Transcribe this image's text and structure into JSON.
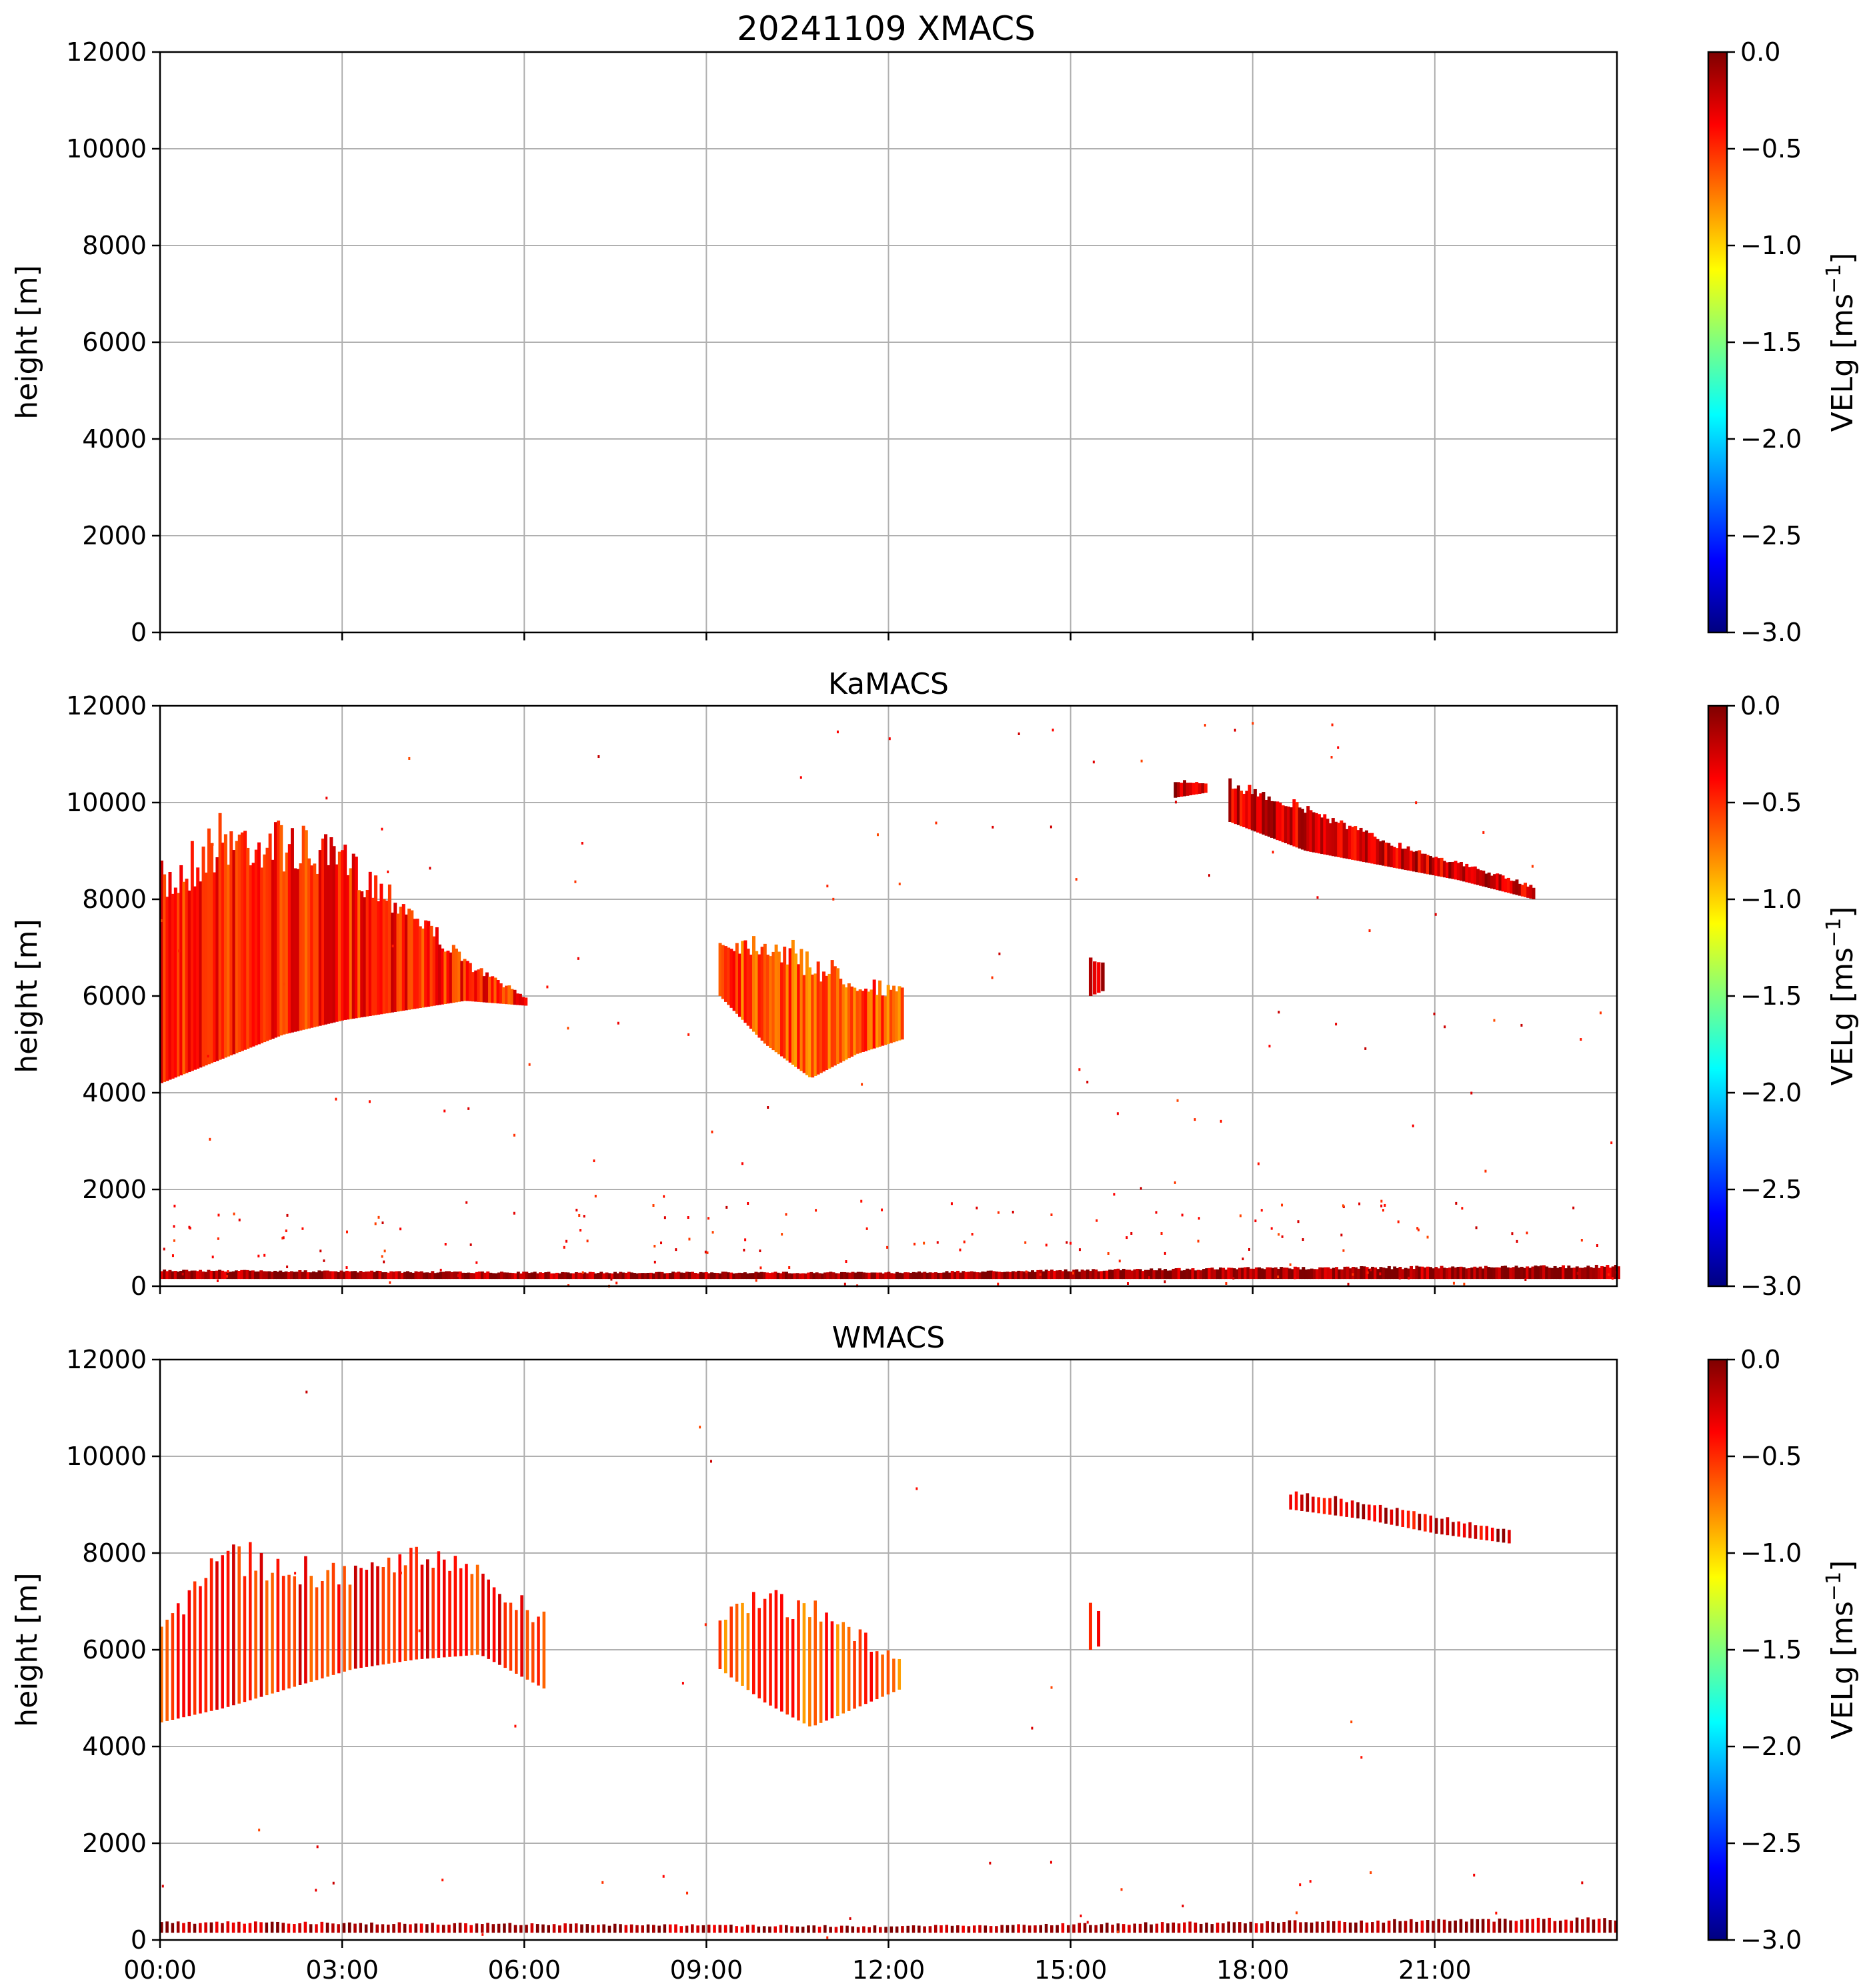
{
  "figure_title": "20241109 XMACS",
  "colors": {
    "grid": "#b0b0b0",
    "colormap": [
      "#00007f",
      "#0000ff",
      "#007fff",
      "#00ffff",
      "#7fff7f",
      "#ffff00",
      "#ff7f00",
      "#ff0000",
      "#7f0000"
    ]
  },
  "chart_data": [
    {
      "type": "heatmap",
      "title": "",
      "ylabel": "height [m]",
      "xlim": [
        "00:00",
        "24:00"
      ],
      "ylim": [
        0,
        12000
      ],
      "yticks": [
        "0",
        "2000",
        "4000",
        "6000",
        "8000",
        "10000",
        "12000"
      ],
      "xticks": [
        "00:00",
        "03:00",
        "06:00",
        "09:00",
        "12:00",
        "15:00",
        "18:00",
        "21:00"
      ],
      "show_xtick_labels": false,
      "grid": true,
      "colorbar": {
        "label": "VELg [ms",
        "label_exp": "−1",
        "label_close": "]",
        "range": [
          -3.0,
          0.0
        ],
        "ticks": [
          "0.0",
          "−0.5",
          "−1.0",
          "−1.5",
          "−2.0",
          "−2.5",
          "−3.0"
        ]
      },
      "regions": []
    },
    {
      "type": "heatmap",
      "title": "KaMACS",
      "ylabel": "height [m]",
      "xlim": [
        "00:00",
        "24:00"
      ],
      "ylim": [
        0,
        12000
      ],
      "yticks": [
        "0",
        "2000",
        "4000",
        "6000",
        "8000",
        "10000",
        "12000"
      ],
      "xticks": [
        "00:00",
        "03:00",
        "06:00",
        "09:00",
        "12:00",
        "15:00",
        "18:00",
        "21:00"
      ],
      "show_xtick_labels": false,
      "grid": true,
      "colorbar": {
        "label": "VELg [ms",
        "label_exp": "−1",
        "label_close": "]",
        "range": [
          -3.0,
          0.0
        ],
        "ticks": [
          "0.0",
          "−0.5",
          "−1.0",
          "−1.5",
          "−2.0",
          "−2.5",
          "−3.0"
        ]
      },
      "regions": [
        {
          "t0": 0.0,
          "t1": 6.0,
          "base": [
            4200,
            4700,
            5200,
            5500,
            5700,
            5900,
            5800
          ],
          "top": [
            8800,
            9900,
            9700,
            9200,
            8200,
            6800,
            6000
          ],
          "vel": -0.45
        },
        {
          "t0": 9.2,
          "t1": 12.2,
          "base": [
            6000,
            5000,
            4300,
            4800,
            5100
          ],
          "top": [
            7200,
            7400,
            7000,
            6500,
            6200
          ],
          "vel": -0.6
        },
        {
          "t0": 15.3,
          "t1": 15.5,
          "base": [
            6000,
            6100
          ],
          "top": [
            6900,
            6800
          ],
          "vel": -0.3
        },
        {
          "t0": 16.7,
          "t1": 17.2,
          "base": [
            10100,
            10200
          ],
          "top": [
            10500,
            10400
          ],
          "vel": -0.2
        },
        {
          "t0": 17.6,
          "t1": 22.6,
          "base": [
            9600,
            9000,
            8700,
            8400,
            8000
          ],
          "top": [
            10500,
            10000,
            9300,
            8800,
            8300
          ],
          "vel": -0.25
        },
        {
          "t0": 0.0,
          "t1": 24.0,
          "base": [
            150,
            150,
            150,
            150,
            150
          ],
          "top": [
            350,
            300,
            300,
            400,
            450
          ],
          "vel": -0.1
        }
      ]
    },
    {
      "type": "heatmap",
      "title": "WMACS",
      "ylabel": "height [m]",
      "xlim": [
        "00:00",
        "24:00"
      ],
      "ylim": [
        0,
        12000
      ],
      "yticks": [
        "0",
        "2000",
        "4000",
        "6000",
        "8000",
        "10000",
        "12000"
      ],
      "xticks": [
        "00:00",
        "03:00",
        "06:00",
        "09:00",
        "12:00",
        "15:00",
        "18:00",
        "21:00"
      ],
      "show_xtick_labels": true,
      "grid": true,
      "striped": true,
      "colorbar": {
        "label": "VELg [ms",
        "label_exp": "−1",
        "label_close": "]",
        "range": [
          -3.0,
          0.0
        ],
        "ticks": [
          "0.0",
          "−0.5",
          "−1.0",
          "−1.5",
          "−2.0",
          "−2.5",
          "−3.0"
        ]
      },
      "regions": [
        {
          "t0": 0.0,
          "t1": 6.3,
          "base": [
            4500,
            4800,
            5200,
            5600,
            5800,
            5900,
            5200
          ],
          "top": [
            6800,
            8500,
            8000,
            7800,
            8200,
            7800,
            6800
          ],
          "vel": -0.45
        },
        {
          "t0": 9.2,
          "t1": 12.2,
          "base": [
            5600,
            4900,
            4400,
            4800,
            5200
          ],
          "top": [
            6800,
            7400,
            7200,
            6500,
            5800
          ],
          "vel": -0.6
        },
        {
          "t0": 15.3,
          "t1": 15.5,
          "base": [
            6000,
            6100
          ],
          "top": [
            7000,
            6800
          ],
          "vel": -0.3
        },
        {
          "t0": 18.6,
          "t1": 22.2,
          "base": [
            8900,
            8700,
            8400,
            8200
          ],
          "top": [
            9300,
            9100,
            8800,
            8500
          ],
          "vel": -0.25
        },
        {
          "t0": 0.0,
          "t1": 24.0,
          "base": [
            150,
            150,
            150,
            150,
            150
          ],
          "top": [
            400,
            350,
            300,
            400,
            480
          ],
          "vel": -0.1
        }
      ]
    }
  ]
}
